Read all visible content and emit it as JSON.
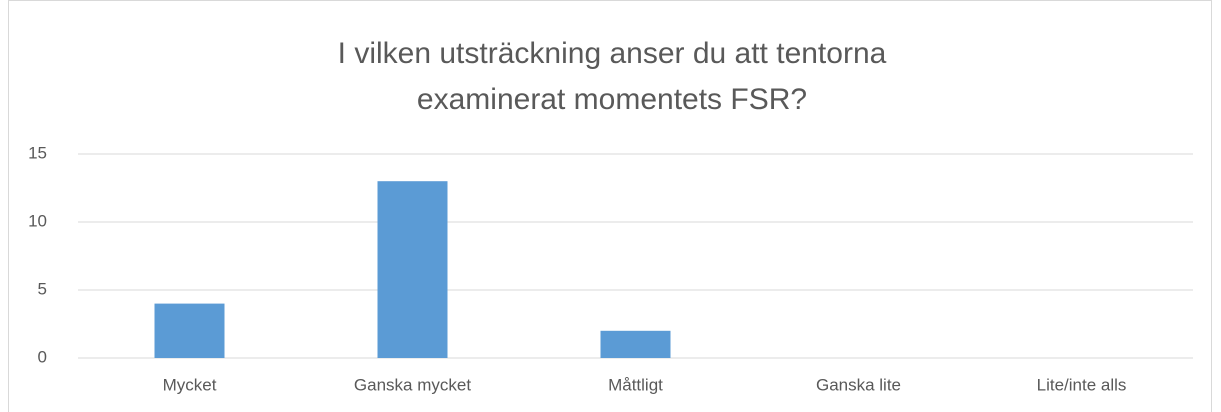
{
  "chart_data": {
    "type": "bar",
    "title": [
      "I vilken utsträckning anser du att tentorna",
      "examinerat momentets FSR?"
    ],
    "categories": [
      "Mycket",
      "Ganska mycket",
      "Måttligt",
      "Ganska lite",
      "Lite/inte alls"
    ],
    "values": [
      4,
      13,
      2,
      0,
      0
    ],
    "color": "#5b9bd5",
    "ylim": [
      0,
      15
    ],
    "yticks": [
      0,
      5,
      10,
      15
    ],
    "grid": true
  }
}
